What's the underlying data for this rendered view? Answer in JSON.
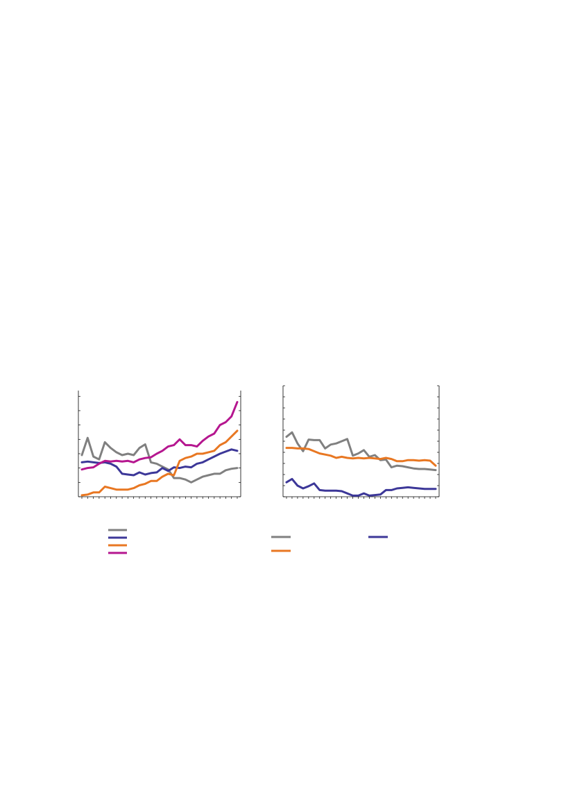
{
  "chart_data": [
    {
      "type": "line",
      "x": [
        1,
        2,
        3,
        4,
        5,
        6,
        7,
        8,
        9,
        10,
        11,
        12,
        13,
        14,
        15,
        16,
        17,
        18,
        19,
        20,
        21,
        22,
        23,
        24,
        25,
        26,
        27,
        28
      ],
      "ylim": [
        0,
        7.4
      ],
      "yticks": [
        0,
        1,
        2,
        3,
        4,
        5,
        6,
        7
      ],
      "axes": "left-and-right",
      "grid": false,
      "legend": "below-left",
      "series": [
        {
          "color": "#808080",
          "values": [
            2.9,
            4.1,
            2.8,
            2.6,
            3.8,
            3.4,
            3.1,
            2.9,
            3.0,
            2.9,
            3.4,
            3.65,
            2.4,
            2.3,
            2.1,
            1.9,
            1.3,
            1.3,
            1.2,
            1.0,
            1.2,
            1.4,
            1.5,
            1.6,
            1.6,
            1.85,
            1.95,
            2.0
          ]
        },
        {
          "color": "#3c3798",
          "values": [
            2.4,
            2.45,
            2.4,
            2.35,
            2.4,
            2.3,
            2.1,
            1.6,
            1.55,
            1.5,
            1.7,
            1.55,
            1.65,
            1.7,
            2.0,
            1.8,
            2.05,
            2.0,
            2.1,
            2.05,
            2.3,
            2.4,
            2.6,
            2.8,
            3.0,
            3.15,
            3.3,
            3.2
          ]
        },
        {
          "color": "#e87722",
          "values": [
            0.1,
            0.15,
            0.3,
            0.3,
            0.7,
            0.6,
            0.5,
            0.5,
            0.5,
            0.6,
            0.8,
            0.9,
            1.1,
            1.1,
            1.4,
            1.6,
            1.5,
            2.5,
            2.7,
            2.8,
            3.0,
            3.0,
            3.1,
            3.2,
            3.6,
            3.8,
            4.2,
            4.6
          ]
        },
        {
          "color": "#b5168f",
          "values": [
            1.9,
            2.0,
            2.05,
            2.3,
            2.5,
            2.45,
            2.5,
            2.45,
            2.5,
            2.4,
            2.6,
            2.7,
            2.75,
            3.0,
            3.2,
            3.5,
            3.6,
            4.0,
            3.6,
            3.6,
            3.5,
            3.9,
            4.2,
            4.4,
            5.0,
            5.2,
            5.6,
            6.6
          ]
        }
      ]
    },
    {
      "type": "line",
      "x": [
        1,
        2,
        3,
        4,
        5,
        6,
        7,
        8,
        9,
        10,
        11,
        12,
        13,
        14,
        15,
        16,
        17,
        18,
        19,
        20,
        21,
        22,
        23,
        24,
        25,
        26,
        27,
        28
      ],
      "ylim": [
        0,
        10
      ],
      "yticks": [
        0,
        1,
        2,
        3,
        4,
        5,
        6,
        7,
        8,
        9,
        10
      ],
      "axes": "left-and-right",
      "grid": false,
      "legend": "below",
      "series": [
        {
          "color": "#808080",
          "values": [
            5.4,
            5.8,
            4.8,
            4.1,
            5.15,
            5.1,
            5.1,
            4.35,
            4.7,
            4.8,
            5.0,
            5.2,
            3.7,
            3.9,
            4.2,
            3.6,
            3.75,
            3.3,
            3.35,
            2.65,
            2.8,
            2.75,
            2.65,
            2.55,
            2.5,
            2.5,
            2.45,
            2.4
          ]
        },
        {
          "color": "#e87722",
          "values": [
            4.4,
            4.4,
            4.35,
            4.35,
            4.3,
            4.1,
            3.9,
            3.8,
            3.7,
            3.5,
            3.6,
            3.5,
            3.45,
            3.5,
            3.45,
            3.5,
            3.45,
            3.4,
            3.5,
            3.4,
            3.2,
            3.2,
            3.3,
            3.3,
            3.25,
            3.3,
            3.25,
            2.8
          ]
        },
        {
          "color": "#3c3798",
          "values": [
            1.3,
            1.6,
            1.0,
            0.75,
            0.95,
            1.2,
            0.6,
            0.55,
            0.55,
            0.55,
            0.5,
            0.3,
            0.1,
            0.1,
            0.3,
            0.1,
            0.15,
            0.2,
            0.6,
            0.6,
            0.75,
            0.8,
            0.85,
            0.8,
            0.75,
            0.7,
            0.7,
            0.7
          ]
        }
      ]
    }
  ],
  "legend": {
    "left": [
      {
        "color": "#808080"
      },
      {
        "color": "#3c3798"
      },
      {
        "color": "#e87722"
      },
      {
        "color": "#b5168f"
      }
    ],
    "right": [
      {
        "color": "#808080"
      },
      {
        "color": "#e87722"
      },
      {
        "color": "#3c3798"
      }
    ]
  }
}
